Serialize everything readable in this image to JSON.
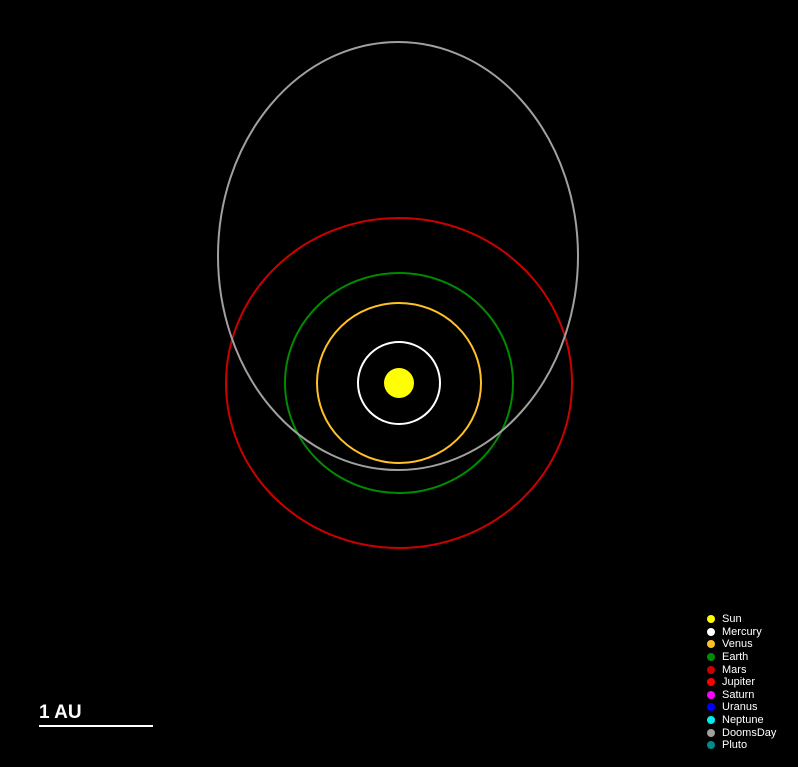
{
  "orbits": [
    {
      "body": "Mercury",
      "color": "#ffffff"
    },
    {
      "body": "Venus",
      "color": "#ffc125"
    },
    {
      "body": "Earth",
      "color": "#008b00"
    },
    {
      "body": "Mars",
      "color": "#cd0000"
    },
    {
      "body": "DoomsDay",
      "color": "#a0a0a0"
    }
  ],
  "sun": {
    "body": "Sun",
    "color": "#ffff00"
  },
  "legend": {
    "items": [
      {
        "label": "Sun",
        "color": "#ffff00"
      },
      {
        "label": "Mercury",
        "color": "#ffffff"
      },
      {
        "label": "Venus",
        "color": "#ffc125"
      },
      {
        "label": "Earth",
        "color": "#008b00"
      },
      {
        "label": "Mars",
        "color": "#cd0000"
      },
      {
        "label": "Jupiter",
        "color": "#ff0000"
      },
      {
        "label": "Saturn",
        "color": "#ff00ff"
      },
      {
        "label": "Uranus",
        "color": "#0000ff"
      },
      {
        "label": "Neptune",
        "color": "#00eeee"
      },
      {
        "label": "DoomsDay",
        "color": "#a0a0a0"
      },
      {
        "label": "Pluto",
        "color": "#008b8b"
      }
    ]
  },
  "scale_bar": {
    "label": "1 AU"
  }
}
